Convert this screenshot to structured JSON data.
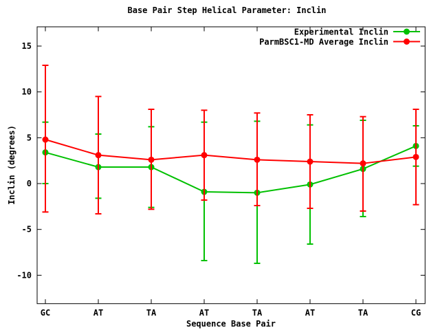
{
  "title": "Base Pair Step Helical Parameter: Inclin",
  "colors": {
    "background": "#FFFFFF",
    "axis": "#000000",
    "text": "#000000",
    "experimental": "#00C000",
    "parmbsc1": "#FF0000"
  },
  "legend": {
    "entries": [
      {
        "label": "Experimental Inclin",
        "color": "#00C000"
      },
      {
        "label": "ParmBSC1-MD Average Inclin",
        "color": "#FF0000"
      }
    ],
    "position": "top-right-inside"
  },
  "chart_data": {
    "type": "line",
    "title": "Base Pair Step Helical Parameter: Inclin",
    "xlabel": "Sequence Base Pair",
    "ylabel": "Inclin (degrees)",
    "categories": [
      "GC",
      "AT",
      "TA",
      "AT",
      "TA",
      "AT",
      "TA",
      "CG"
    ],
    "yticks": [
      -10,
      -5,
      0,
      5,
      10,
      15
    ],
    "ylim": [
      -13.1,
      17.1
    ],
    "grid": false,
    "legend_position": "top-right-inside",
    "marker": "filled-circle",
    "series": [
      {
        "name": "Experimental Inclin",
        "color": "#00C000",
        "values": [
          3.4,
          1.8,
          1.8,
          -0.9,
          -1.0,
          -0.1,
          1.6,
          4.1
        ],
        "err_low": [
          0.0,
          -1.6,
          -2.6,
          -8.4,
          -8.7,
          -6.6,
          -3.6,
          1.9
        ],
        "err_high": [
          6.7,
          5.4,
          6.2,
          6.7,
          6.8,
          6.4,
          6.9,
          6.3
        ]
      },
      {
        "name": "ParmBSC1-MD Average Inclin",
        "color": "#FF0000",
        "values": [
          4.8,
          3.1,
          2.6,
          3.1,
          2.6,
          2.4,
          2.2,
          2.9
        ],
        "err_low": [
          -3.1,
          -3.3,
          -2.8,
          -1.8,
          -2.4,
          -2.7,
          -3.0,
          -2.3
        ],
        "err_high": [
          12.9,
          9.5,
          8.1,
          8.0,
          7.7,
          7.5,
          7.3,
          8.1
        ]
      }
    ]
  }
}
